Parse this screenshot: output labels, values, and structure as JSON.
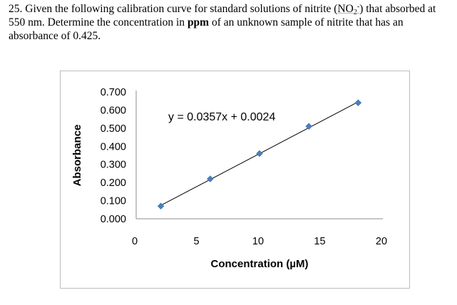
{
  "question": {
    "number": "25.",
    "text_a": "Given the following calibration curve for standard solutions of nitrite",
    "formula_open": "(NO",
    "formula_sub": "2",
    "formula_sup": "-",
    "formula_close": ")",
    "text_b": "that absorbed at 550 nm. Determine the concentration in",
    "bold_word": "ppm",
    "text_c": "of an unknown sample of nitrite that has an absorbance of 0.425."
  },
  "chart_data": {
    "type": "scatter",
    "xlabel": "Concentration (µM)",
    "ylabel": "Absorbance",
    "xlim": [
      0,
      20
    ],
    "ylim": [
      0,
      0.7
    ],
    "x_ticks": [
      "0",
      "5",
      "10",
      "15",
      "20"
    ],
    "y_ticks": [
      "0.000",
      "0.100",
      "0.200",
      "0.300",
      "0.400",
      "0.500",
      "0.600",
      "0.700"
    ],
    "x": [
      2,
      6,
      10,
      14,
      18
    ],
    "y": [
      0.07,
      0.22,
      0.36,
      0.51,
      0.64
    ],
    "trendline": {
      "slope": 0.0357,
      "intercept": 0.0024,
      "label": "y = 0.0357x + 0.0024"
    },
    "grid": false,
    "legend": "none",
    "marker_color": "#4a7ebb",
    "line_color": "#000000"
  }
}
